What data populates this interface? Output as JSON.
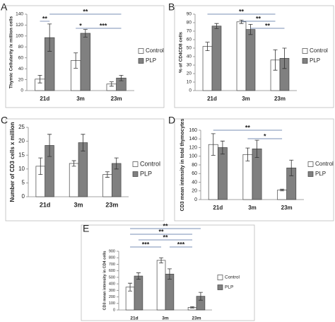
{
  "chart_data": [
    {
      "type": "bar",
      "panel_label": "A",
      "ylabel": "Thymic Cellularity /x million cells",
      "categories": [
        "21d",
        "3m",
        "23m"
      ],
      "series": [
        {
          "name": "Control",
          "color": "#ffffff",
          "values": [
            21,
            55,
            12
          ],
          "errors": [
            7,
            14,
            4
          ]
        },
        {
          "name": "PLP",
          "color": "#808080",
          "values": [
            97,
            105,
            23
          ],
          "errors": [
            25,
            7,
            5
          ]
        }
      ],
      "ylim": [
        0,
        140
      ],
      "yticks": [
        0,
        20,
        40,
        60,
        80,
        100,
        120,
        140
      ],
      "annotations": [
        "**",
        "**",
        "*",
        "***"
      ]
    },
    {
      "type": "bar",
      "panel_label": "B",
      "ylabel": "% of CD4CD8 cells",
      "categories": [
        "21d",
        "3m",
        "23m"
      ],
      "series": [
        {
          "name": "Control",
          "color": "#ffffff",
          "values": [
            52,
            81,
            36
          ],
          "errors": [
            5,
            2,
            12
          ]
        },
        {
          "name": "PLP",
          "color": "#808080",
          "values": [
            76,
            72,
            38
          ],
          "errors": [
            3,
            6,
            12
          ]
        }
      ],
      "ylim": [
        0,
        90
      ],
      "yticks": [
        0,
        10,
        20,
        30,
        40,
        50,
        60,
        70,
        80,
        90
      ],
      "annotations": [
        "**",
        "**",
        "**"
      ]
    },
    {
      "type": "bar",
      "panel_label": "C",
      "ylabel": "Number of CD3 cells x million",
      "categories": [
        "21d",
        "3m",
        "23m"
      ],
      "series": [
        {
          "name": "Control",
          "color": "#ffffff",
          "values": [
            11,
            12,
            8
          ],
          "errors": [
            3,
            1,
            1
          ]
        },
        {
          "name": "PLP",
          "color": "#808080",
          "values": [
            18.5,
            19.5,
            12
          ],
          "errors": [
            4,
            3,
            2
          ]
        }
      ],
      "ylim": [
        0,
        25
      ],
      "yticks": [
        0,
        5,
        10,
        15,
        20,
        25
      ],
      "annotations": []
    },
    {
      "type": "bar",
      "panel_label": "D",
      "ylabel": "CD3 mean intensity in total thymocytes",
      "categories": [
        "21d",
        "3m",
        "23m"
      ],
      "series": [
        {
          "name": "Control",
          "color": "#ffffff",
          "values": [
            127,
            104,
            22
          ],
          "errors": [
            25,
            15,
            2
          ]
        },
        {
          "name": "PLP",
          "color": "#808080",
          "values": [
            120,
            117,
            73
          ],
          "errors": [
            15,
            20,
            18
          ]
        }
      ],
      "ylim": [
        0,
        160
      ],
      "yticks": [
        0,
        20,
        40,
        60,
        80,
        100,
        120,
        140,
        160
      ],
      "annotations": [
        "**",
        "*"
      ]
    },
    {
      "type": "bar",
      "panel_label": "E",
      "ylabel": "CD3 mean intensity in CD4 cells",
      "categories": [
        "21d",
        "3m",
        "23m"
      ],
      "series": [
        {
          "name": "Control",
          "color": "#ffffff",
          "values": [
            350,
            760,
            40
          ],
          "errors": [
            60,
            40,
            10
          ]
        },
        {
          "name": "PLP",
          "color": "#808080",
          "values": [
            520,
            550,
            210
          ],
          "errors": [
            50,
            80,
            60
          ]
        }
      ],
      "ylim": [
        0,
        900
      ],
      "yticks": [
        0,
        100,
        200,
        300,
        400,
        500,
        600,
        700,
        800,
        900
      ],
      "annotations": [
        "**",
        "**",
        "**",
        "***",
        "***"
      ]
    }
  ]
}
